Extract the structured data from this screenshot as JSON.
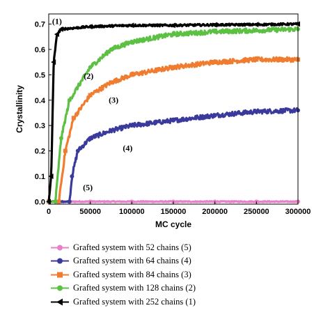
{
  "chart_data": {
    "type": "line",
    "xlabel": "MC cycle",
    "ylabel": "Crystallinity",
    "xlim": [
      0,
      300000
    ],
    "ylim": [
      -0.01,
      0.74
    ],
    "xticks": [
      0,
      50000,
      100000,
      150000,
      200000,
      250000,
      300000
    ],
    "xtick_labels": [
      "0",
      "50000",
      "100000",
      "150000",
      "200000",
      "250000",
      "300000"
    ],
    "yticks": [
      0.0,
      0.1,
      0.2,
      0.3,
      0.4,
      0.5,
      0.6,
      0.7
    ],
    "ytick_labels": [
      "0.0",
      "0.1",
      "0.2",
      "0.3",
      "0.4",
      "0.5",
      "0.6",
      "0.7"
    ],
    "legend_position": "below",
    "series": [
      {
        "name": "Grafted system with 52 chains (5)",
        "annotation": "(5)",
        "color": "#e882c8",
        "marker": "circle",
        "x": [
          0,
          50000,
          100000,
          150000,
          200000,
          250000,
          300000
        ],
        "y": [
          0.0,
          0.0,
          0.0,
          0.0,
          0.0,
          0.0,
          0.0
        ]
      },
      {
        "name": "Grafted system with 64 chains (4)",
        "annotation": "(4)",
        "color": "#3a3a9c",
        "marker": "circle",
        "x": [
          0,
          25000,
          28000,
          35000,
          50000,
          75000,
          100000,
          150000,
          200000,
          250000,
          300000
        ],
        "y": [
          0.0,
          0.0,
          0.1,
          0.2,
          0.25,
          0.28,
          0.3,
          0.32,
          0.34,
          0.355,
          0.36
        ]
      },
      {
        "name": "Grafted system with 84 chains (3)",
        "annotation": "(3)",
        "color": "#f07c30",
        "marker": "square",
        "x": [
          0,
          12000,
          20000,
          30000,
          50000,
          75000,
          100000,
          150000,
          200000,
          250000,
          300000
        ],
        "y": [
          0.0,
          0.0,
          0.2,
          0.33,
          0.42,
          0.47,
          0.5,
          0.53,
          0.55,
          0.56,
          0.56
        ]
      },
      {
        "name": "Grafted system with 128 chains (2)",
        "annotation": "(2)",
        "color": "#5cc043",
        "marker": "circle",
        "x": [
          0,
          8000,
          15000,
          25000,
          50000,
          75000,
          100000,
          150000,
          200000,
          250000,
          300000
        ],
        "y": [
          0.0,
          0.0,
          0.25,
          0.4,
          0.53,
          0.6,
          0.63,
          0.66,
          0.67,
          0.675,
          0.68
        ]
      },
      {
        "name": "Grafted system with 252 chains (1)",
        "annotation": "(1)",
        "color": "#000000",
        "marker": "left-triangle",
        "x": [
          0,
          3000,
          6000,
          10000,
          15000,
          50000,
          100000,
          150000,
          200000,
          250000,
          300000
        ],
        "y": [
          0.0,
          0.1,
          0.55,
          0.66,
          0.68,
          0.69,
          0.695,
          0.695,
          0.697,
          0.698,
          0.7
        ]
      }
    ]
  }
}
